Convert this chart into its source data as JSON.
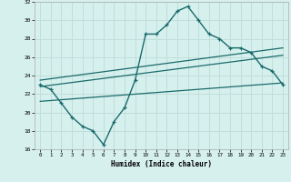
{
  "xlabel": "Humidex (Indice chaleur)",
  "bg_color": "#d6f0ee",
  "line_color": "#1a6b6b",
  "grid_color": "#c0deda",
  "xlim": [
    -0.5,
    23.5
  ],
  "ylim": [
    16,
    32
  ],
  "yticks": [
    16,
    18,
    20,
    22,
    24,
    26,
    28,
    30,
    32
  ],
  "xticks": [
    0,
    1,
    2,
    3,
    4,
    5,
    6,
    7,
    8,
    9,
    10,
    11,
    12,
    13,
    14,
    15,
    16,
    17,
    18,
    19,
    20,
    21,
    22,
    23
  ],
  "humidex_curve": {
    "x": [
      0,
      1,
      2,
      3,
      4,
      5,
      6,
      7,
      8,
      9,
      10,
      11,
      12,
      13,
      14,
      15,
      16,
      17,
      18,
      19,
      20,
      21,
      22,
      23
    ],
    "y": [
      23.0,
      22.5,
      21.0,
      19.5,
      18.5,
      18.0,
      16.5,
      19.0,
      20.5,
      23.5,
      28.5,
      28.5,
      29.5,
      31.0,
      31.5,
      30.0,
      28.5,
      28.0,
      27.0,
      27.0,
      26.5,
      25.0,
      24.5,
      23.0
    ]
  },
  "line_upper": {
    "x": [
      0,
      23
    ],
    "y": [
      23.5,
      27.0
    ]
  },
  "line_middle": {
    "x": [
      0,
      23
    ],
    "y": [
      22.8,
      26.2
    ]
  },
  "line_lower": {
    "x": [
      0,
      23
    ],
    "y": [
      21.2,
      23.2
    ]
  }
}
